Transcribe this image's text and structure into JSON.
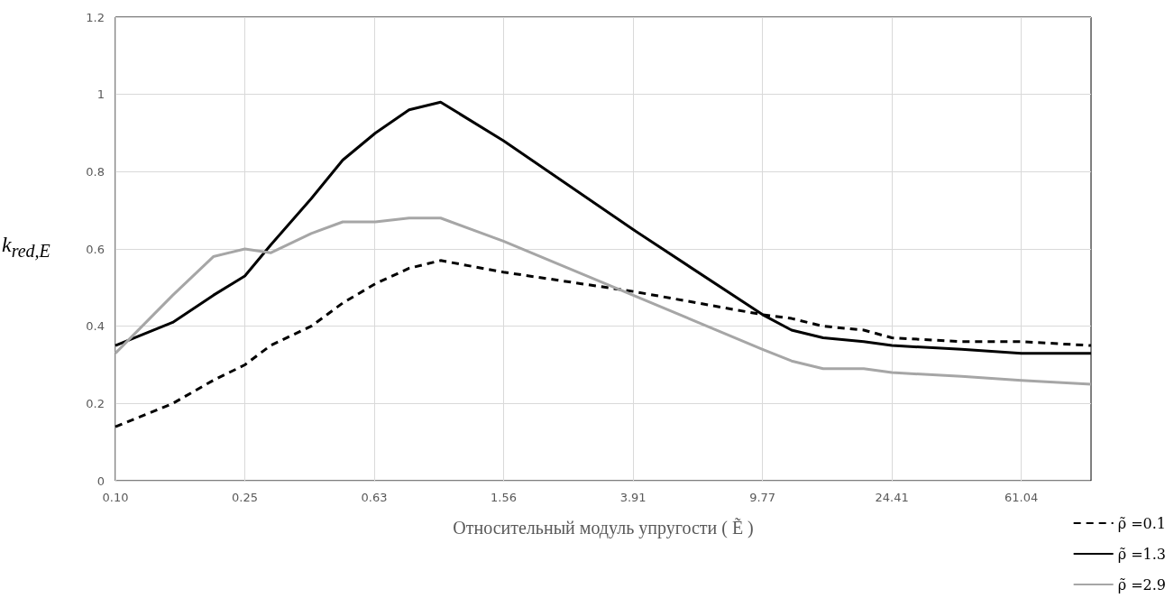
{
  "chart_data": {
    "type": "line",
    "xlabel": "Относительный модуль упругости ( Ẽ )",
    "ylabel": "k$_{red,E}$",
    "x": [
      0.1,
      0.15,
      0.2,
      0.25,
      0.3,
      0.4,
      0.5,
      0.63,
      0.8,
      1,
      1.56,
      3.91,
      9.77,
      12,
      15,
      20,
      24.41,
      40,
      61.04,
      100
    ],
    "series": [
      {
        "name": "ρ̃ =0.1",
        "color": "#000000",
        "line_style": "dashed",
        "values": [
          0.14,
          0.2,
          0.26,
          0.3,
          0.35,
          0.4,
          0.46,
          0.51,
          0.55,
          0.57,
          0.54,
          0.49,
          0.43,
          0.42,
          0.4,
          0.39,
          0.37,
          0.36,
          0.36,
          0.35
        ]
      },
      {
        "name": "ρ̃ =1.3",
        "color": "#000000",
        "line_style": "solid",
        "values": [
          0.35,
          0.41,
          0.48,
          0.53,
          0.61,
          0.73,
          0.83,
          0.9,
          0.96,
          0.98,
          0.88,
          0.65,
          0.43,
          0.39,
          0.37,
          0.36,
          0.35,
          0.34,
          0.33,
          0.33
        ]
      },
      {
        "name": "ρ̃ =2.9",
        "color": "#a6a6a6",
        "line_style": "solid",
        "values": [
          0.33,
          0.48,
          0.58,
          0.6,
          0.59,
          0.64,
          0.67,
          0.67,
          0.68,
          0.68,
          0.62,
          0.48,
          0.34,
          0.31,
          0.29,
          0.29,
          0.28,
          0.27,
          0.26,
          0.25
        ]
      }
    ],
    "log": "x",
    "xlim": [
      0.1,
      100
    ],
    "xticks": [
      {
        "value": 0.1,
        "label": "0.10"
      },
      {
        "value": 0.25,
        "label": "0.25"
      },
      {
        "value": 0.625,
        "label": "0.63"
      },
      {
        "value": 1.5625,
        "label": "1.56"
      },
      {
        "value": 3.90625,
        "label": "3.91"
      },
      {
        "value": 9.765625,
        "label": "9.77"
      },
      {
        "value": 24.4140625,
        "label": "24.41"
      },
      {
        "value": 61.03515625,
        "label": "61.04"
      }
    ],
    "ylim": [
      0,
      1.2
    ],
    "yticks": [
      0,
      0.2,
      0.4,
      0.6,
      0.8,
      1,
      1.2
    ],
    "grid": true,
    "legend": "bottom right",
    "marker": "none"
  }
}
